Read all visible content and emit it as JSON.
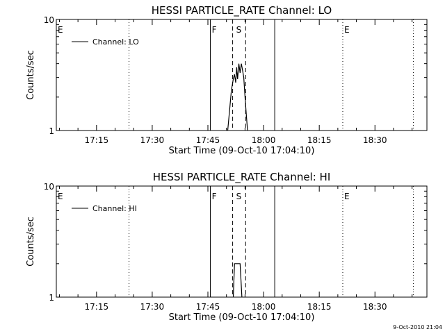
{
  "chart_data": [
    {
      "type": "line",
      "title": "HESSI PARTICLE_RATE Channel: LO",
      "xlabel": "Start Time (09-Oct-10 17:04:10)",
      "ylabel": "Counts/sec",
      "yscale": "log",
      "ylim": [
        1,
        10
      ],
      "y_tick_labels": [
        "1",
        "10"
      ],
      "xlim": [
        "17:04:10",
        "18:44:00"
      ],
      "x_tick_labels": [
        "17:15",
        "17:30",
        "17:45",
        "18:00",
        "18:15",
        "18:30"
      ],
      "legend": {
        "label": "Channel: LO",
        "placement": "top-left"
      },
      "series": [
        {
          "name": "Channel: LO",
          "points": [
            [
              "17:50:20",
              1.0
            ],
            [
              "17:50:50",
              1.5
            ],
            [
              "17:51:20",
              2.3
            ],
            [
              "17:51:50",
              2.9
            ],
            [
              "17:52:10",
              3.2
            ],
            [
              "17:52:30",
              2.7
            ],
            [
              "17:52:45",
              3.7
            ],
            [
              "17:53:00",
              2.9
            ],
            [
              "17:53:20",
              4.0
            ],
            [
              "17:53:40",
              3.3
            ],
            [
              "17:54:00",
              4.0
            ],
            [
              "17:54:20",
              3.5
            ],
            [
              "17:54:40",
              3.0
            ],
            [
              "17:55:00",
              2.0
            ],
            [
              "17:55:20",
              1.4
            ],
            [
              "17:55:40",
              1.0
            ]
          ]
        }
      ],
      "markers": [
        {
          "label": "E",
          "time": "17:04:10",
          "style": "solid"
        },
        {
          "label": "",
          "time": "17:23:45",
          "style": "dotted"
        },
        {
          "label": "F",
          "time": "17:45:40",
          "style": "solid"
        },
        {
          "label": "",
          "time": "17:51:40",
          "style": "dashed"
        },
        {
          "label": "S",
          "time": "17:53:20",
          "style": "none"
        },
        {
          "label": "",
          "time": "17:55:10",
          "style": "dashed"
        },
        {
          "label": "",
          "time": "18:03:00",
          "style": "solid"
        },
        {
          "label": "E",
          "time": "18:21:20",
          "style": "dotted"
        },
        {
          "label": "",
          "time": "18:40:20",
          "style": "dotted"
        }
      ]
    },
    {
      "type": "line",
      "title": "HESSI PARTICLE_RATE Channel: HI",
      "xlabel": "Start Time (09-Oct-10 17:04:10)",
      "ylabel": "Counts/sec",
      "yscale": "log",
      "ylim": [
        1,
        10
      ],
      "y_tick_labels": [
        "1",
        "10"
      ],
      "xlim": [
        "17:04:10",
        "18:44:00"
      ],
      "x_tick_labels": [
        "17:15",
        "17:30",
        "17:45",
        "18:00",
        "18:15",
        "18:30"
      ],
      "legend": {
        "label": "Channel: HI",
        "placement": "top-left"
      },
      "series": [
        {
          "name": "Channel: HI",
          "points": [
            [
              "17:51:50",
              1.0
            ],
            [
              "17:52:10",
              2.0
            ],
            [
              "17:53:40",
              2.0
            ],
            [
              "17:54:10",
              1.0
            ]
          ]
        }
      ],
      "markers": [
        {
          "label": "E",
          "time": "17:04:10",
          "style": "solid"
        },
        {
          "label": "",
          "time": "17:23:45",
          "style": "dotted"
        },
        {
          "label": "F",
          "time": "17:45:40",
          "style": "solid"
        },
        {
          "label": "",
          "time": "17:51:40",
          "style": "dashed"
        },
        {
          "label": "S",
          "time": "17:53:20",
          "style": "none"
        },
        {
          "label": "",
          "time": "17:55:10",
          "style": "dashed"
        },
        {
          "label": "",
          "time": "18:03:00",
          "style": "solid"
        },
        {
          "label": "E",
          "time": "18:21:20",
          "style": "dotted"
        },
        {
          "label": "",
          "time": "18:40:20",
          "style": "dotted"
        }
      ]
    }
  ],
  "timestamp": "9-Oct-2010 21:04",
  "colors": {
    "background": "#ffffff",
    "foreground": "#000000"
  }
}
